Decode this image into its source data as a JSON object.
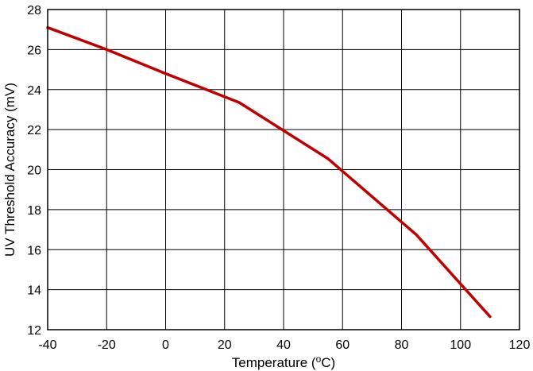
{
  "chart_data": {
    "type": "line",
    "title": "",
    "xlabel": "Temperature (",
    "xlabel_sup": "o",
    "xlabel_tail": "C)",
    "ylabel": "UV Threshold Accuracy (mV)",
    "xlim": [
      -40,
      120
    ],
    "ylim": [
      12,
      28
    ],
    "xticks": [
      -40,
      -20,
      0,
      20,
      40,
      60,
      80,
      100,
      120
    ],
    "yticks": [
      12,
      14,
      16,
      18,
      20,
      22,
      24,
      26,
      28
    ],
    "grid": true,
    "legend": "none",
    "series": [
      {
        "color": "#c00000",
        "x": [
          -40,
          -20,
          0,
          25,
          55,
          85,
          110
        ],
        "y": [
          27.1,
          26.0,
          24.8,
          23.35,
          20.55,
          16.75,
          12.65
        ]
      }
    ]
  }
}
